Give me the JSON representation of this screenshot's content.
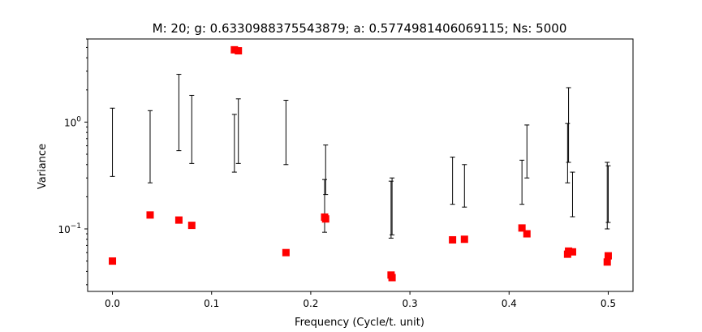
{
  "chart_data": {
    "type": "scatter",
    "title": "M: 20; g: 0.6330988375543879; a: 0.5774981406069115; Ns: 5000",
    "xlabel": "Frequency (Cycle/t. unit)",
    "ylabel": "Variance",
    "y_scale": "log",
    "xlim": [
      -0.025,
      0.525
    ],
    "ylim": [
      0.026,
      6.0
    ],
    "x_ticks": [
      0.0,
      0.1,
      0.2,
      0.3,
      0.4,
      0.5
    ],
    "x_tick_labels": [
      "0.0",
      "0.1",
      "0.2",
      "0.3",
      "0.4",
      "0.5"
    ],
    "y_major_ticks": [
      0.1,
      1
    ],
    "y_tick_labels": [
      "10^{-1}",
      "10^{0}"
    ],
    "grid": false,
    "marker_color": "#ff0000",
    "errorbar_color": "#000000",
    "points": [
      {
        "x": 0.0,
        "y": 0.05
      },
      {
        "x": 0.038,
        "y": 0.135
      },
      {
        "x": 0.067,
        "y": 0.121
      },
      {
        "x": 0.08,
        "y": 0.108
      },
      {
        "x": 0.123,
        "y": 4.75
      },
      {
        "x": 0.127,
        "y": 4.65
      },
      {
        "x": 0.175,
        "y": 0.06
      },
      {
        "x": 0.214,
        "y": 0.129
      },
      {
        "x": 0.215,
        "y": 0.124
      },
      {
        "x": 0.281,
        "y": 0.037
      },
      {
        "x": 0.282,
        "y": 0.035
      },
      {
        "x": 0.343,
        "y": 0.079
      },
      {
        "x": 0.355,
        "y": 0.08
      },
      {
        "x": 0.413,
        "y": 0.102
      },
      {
        "x": 0.418,
        "y": 0.09
      },
      {
        "x": 0.459,
        "y": 0.058
      },
      {
        "x": 0.46,
        "y": 0.062
      },
      {
        "x": 0.464,
        "y": 0.061
      },
      {
        "x": 0.499,
        "y": 0.049
      },
      {
        "x": 0.5,
        "y": 0.056
      }
    ],
    "intervals": [
      {
        "x": 0.0,
        "low": 0.31,
        "high": 1.35
      },
      {
        "x": 0.038,
        "low": 0.27,
        "high": 1.28
      },
      {
        "x": 0.067,
        "low": 0.54,
        "high": 2.8
      },
      {
        "x": 0.08,
        "low": 0.41,
        "high": 1.78
      },
      {
        "x": 0.123,
        "low": 0.34,
        "high": 1.18
      },
      {
        "x": 0.127,
        "low": 0.41,
        "high": 1.65
      },
      {
        "x": 0.175,
        "low": 0.4,
        "high": 1.6
      },
      {
        "x": 0.214,
        "low": 0.093,
        "high": 0.29
      },
      {
        "x": 0.215,
        "low": 0.21,
        "high": 0.61
      },
      {
        "x": 0.281,
        "low": 0.082,
        "high": 0.28
      },
      {
        "x": 0.282,
        "low": 0.088,
        "high": 0.3
      },
      {
        "x": 0.343,
        "low": 0.17,
        "high": 0.47
      },
      {
        "x": 0.355,
        "low": 0.16,
        "high": 0.4
      },
      {
        "x": 0.413,
        "low": 0.17,
        "high": 0.44
      },
      {
        "x": 0.418,
        "low": 0.3,
        "high": 0.94
      },
      {
        "x": 0.459,
        "low": 0.27,
        "high": 0.97
      },
      {
        "x": 0.46,
        "low": 0.42,
        "high": 2.1
      },
      {
        "x": 0.464,
        "low": 0.13,
        "high": 0.34
      },
      {
        "x": 0.499,
        "low": 0.1,
        "high": 0.42
      },
      {
        "x": 0.5,
        "low": 0.115,
        "high": 0.39
      }
    ]
  }
}
